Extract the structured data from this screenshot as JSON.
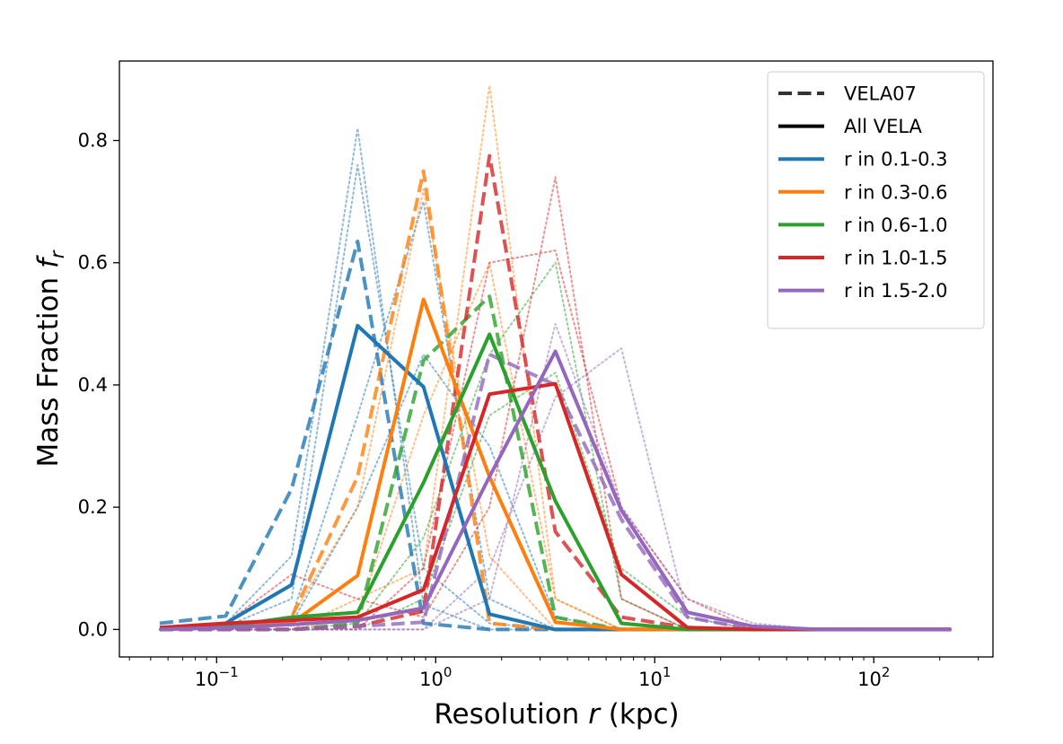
{
  "chart_data": {
    "type": "line",
    "xscale": "log",
    "xlabel": "Resolution r (kpc)",
    "xlabel_parts": {
      "pre": "Resolution ",
      "var": "r",
      "post": " (kpc)"
    },
    "ylabel": "Mass Fraction f_r",
    "ylabel_parts": {
      "pre": "Mass Fraction ",
      "var": "f",
      "sub": "r"
    },
    "xlim": [
      0.036,
      350
    ],
    "ylim": [
      -0.045,
      0.93
    ],
    "xticks": [
      {
        "value": 0.1,
        "base": "10",
        "exp": "−1"
      },
      {
        "value": 1,
        "base": "10",
        "exp": "0"
      },
      {
        "value": 10,
        "base": "10",
        "exp": "1"
      },
      {
        "value": 100,
        "base": "10",
        "exp": "2"
      }
    ],
    "yticks": [
      {
        "value": 0.0,
        "label": "0.0"
      },
      {
        "value": 0.2,
        "label": "0.2"
      },
      {
        "value": 0.4,
        "label": "0.4"
      },
      {
        "value": 0.6,
        "label": "0.6"
      },
      {
        "value": 0.8,
        "label": "0.8"
      }
    ],
    "legend": {
      "position": "top-right",
      "entries": [
        {
          "label": "VELA07",
          "color": "#333333",
          "style": "dashed"
        },
        {
          "label": "All VELA",
          "color": "#000000",
          "style": "solid"
        },
        {
          "label": "r in 0.1-0.3",
          "color": "#1f77b4",
          "style": "solid"
        },
        {
          "label": "r in 0.3-0.6",
          "color": "#ff7f0e",
          "style": "solid"
        },
        {
          "label": "r in 0.6-1.0",
          "color": "#2ca02c",
          "style": "solid"
        },
        {
          "label": "r in 1.0-1.5",
          "color": "#d62728",
          "style": "solid"
        },
        {
          "label": "r in 1.5-2.0",
          "color": "#9467bd",
          "style": "solid"
        }
      ]
    },
    "x": [
      0.055,
      0.11,
      0.22,
      0.44,
      0.88,
      1.76,
      3.52,
      7.04,
      14.1,
      28.2,
      56.3,
      113,
      225
    ],
    "series": [
      {
        "name": "r in 0.1-0.3 (All VELA)",
        "color": "#1f77b4",
        "style": "solid",
        "values": [
          0.0,
          0.01,
          0.073,
          0.497,
          0.397,
          0.025,
          0.0,
          0.0,
          0.0,
          0.0,
          0.0,
          0.0,
          0.0
        ]
      },
      {
        "name": "r in 0.3-0.6 (All VELA)",
        "color": "#ff7f0e",
        "style": "solid",
        "values": [
          0.0,
          0.005,
          0.01,
          0.088,
          0.54,
          0.25,
          0.012,
          0.0,
          0.0,
          0.0,
          0.0,
          0.0,
          0.0
        ]
      },
      {
        "name": "r in 0.6-1.0 (All VELA)",
        "color": "#2ca02c",
        "style": "solid",
        "values": [
          0.0,
          0.005,
          0.02,
          0.028,
          0.24,
          0.483,
          0.21,
          0.01,
          0.0,
          0.0,
          0.0,
          0.0,
          0.0
        ]
      },
      {
        "name": "r in 1.0-1.5 (All VELA)",
        "color": "#d62728",
        "style": "solid",
        "values": [
          0.003,
          0.01,
          0.015,
          0.02,
          0.065,
          0.385,
          0.402,
          0.09,
          0.003,
          0.0,
          0.0,
          0.0,
          0.0
        ]
      },
      {
        "name": "r in 1.5-2.0 (All VELA)",
        "color": "#9467bd",
        "style": "solid",
        "values": [
          0.0,
          0.003,
          0.008,
          0.015,
          0.035,
          0.25,
          0.455,
          0.195,
          0.028,
          0.005,
          0.0,
          0.0,
          0.0
        ]
      },
      {
        "name": "r in 0.1-0.3 (VELA07)",
        "color": "#1f77b4",
        "style": "dashed",
        "values": [
          0.01,
          0.022,
          0.23,
          0.635,
          0.01,
          0.0,
          0.0,
          0.0,
          0.0,
          0.0,
          0.0,
          0.0,
          0.0
        ]
      },
      {
        "name": "r in 0.3-0.6 (VELA07)",
        "color": "#ff7f0e",
        "style": "dashed",
        "values": [
          0.0,
          0.003,
          0.02,
          0.25,
          0.75,
          0.01,
          0.0,
          0.0,
          0.0,
          0.0,
          0.0,
          0.0,
          0.0
        ]
      },
      {
        "name": "r in 0.6-1.0 (VELA07)",
        "color": "#2ca02c",
        "style": "dashed",
        "values": [
          0.0,
          0.0,
          0.0,
          0.01,
          0.44,
          0.545,
          0.02,
          0.0,
          0.0,
          0.0,
          0.0,
          0.0,
          0.0
        ]
      },
      {
        "name": "r in 1.0-1.5 (VELA07)",
        "color": "#d62728",
        "style": "dashed",
        "values": [
          0.0,
          0.0,
          0.0,
          0.005,
          0.03,
          0.775,
          0.16,
          0.02,
          0.003,
          0.0,
          0.0,
          0.0,
          0.0
        ]
      },
      {
        "name": "r in 1.5-2.0 (VELA07)",
        "color": "#9467bd",
        "style": "dashed",
        "values": [
          0.0,
          0.0,
          0.0,
          0.005,
          0.012,
          0.45,
          0.4,
          0.18,
          0.02,
          0.0,
          0.0,
          0.0,
          0.0
        ]
      },
      {
        "name": "r in 0.1-0.3 (galaxy 1)",
        "color": "#1f77b4",
        "style": "dotted",
        "values": [
          0.0,
          0.01,
          0.12,
          0.82,
          0.04,
          0.0,
          0.0,
          0.0,
          0.0,
          0.0,
          0.0,
          0.0,
          0.0
        ]
      },
      {
        "name": "r in 0.1-0.3 (galaxy 2)",
        "color": "#1f77b4",
        "style": "dotted",
        "values": [
          0.0,
          0.005,
          0.05,
          0.76,
          0.1,
          0.01,
          0.0,
          0.0,
          0.0,
          0.0,
          0.0,
          0.0,
          0.0
        ]
      },
      {
        "name": "r in 0.1-0.3 (galaxy 3)",
        "color": "#1f77b4",
        "style": "dotted",
        "values": [
          0.0,
          0.0,
          0.02,
          0.35,
          0.7,
          0.05,
          0.0,
          0.0,
          0.0,
          0.0,
          0.0,
          0.0,
          0.0
        ]
      },
      {
        "name": "r in 0.1-0.3 (galaxy 4)",
        "color": "#1f77b4",
        "style": "dotted",
        "values": [
          0.0,
          0.0,
          0.01,
          0.2,
          0.45,
          0.3,
          0.02,
          0.0,
          0.0,
          0.0,
          0.0,
          0.0,
          0.0
        ]
      },
      {
        "name": "r in 0.3-0.6 (galaxy 1)",
        "color": "#ff7f0e",
        "style": "dotted",
        "values": [
          0.0,
          0.0,
          0.02,
          0.2,
          0.72,
          0.12,
          0.0,
          0.0,
          0.0,
          0.0,
          0.0,
          0.0,
          0.0
        ]
      },
      {
        "name": "r in 0.3-0.6 (galaxy 2)",
        "color": "#ff7f0e",
        "style": "dotted",
        "values": [
          0.0,
          0.0,
          0.0,
          0.05,
          0.1,
          0.89,
          0.05,
          0.0,
          0.0,
          0.0,
          0.0,
          0.0,
          0.0
        ]
      },
      {
        "name": "r in 0.3-0.6 (galaxy 3)",
        "color": "#ff7f0e",
        "style": "dotted",
        "values": [
          0.0,
          0.0,
          0.0,
          0.02,
          0.35,
          0.6,
          0.05,
          0.0,
          0.0,
          0.0,
          0.0,
          0.0,
          0.0
        ]
      },
      {
        "name": "r in 0.6-1.0 (galaxy 1)",
        "color": "#2ca02c",
        "style": "dotted",
        "values": [
          0.0,
          0.0,
          0.0,
          0.01,
          0.15,
          0.45,
          0.6,
          0.05,
          0.0,
          0.0,
          0.0,
          0.0,
          0.0
        ]
      },
      {
        "name": "r in 0.6-1.0 (galaxy 2)",
        "color": "#2ca02c",
        "style": "dotted",
        "values": [
          0.0,
          0.0,
          0.0,
          0.0,
          0.05,
          0.35,
          0.42,
          0.1,
          0.02,
          0.0,
          0.0,
          0.0,
          0.0
        ]
      },
      {
        "name": "r in 1.0-1.5 (galaxy 1)",
        "color": "#d62728",
        "style": "dotted",
        "values": [
          0.0,
          0.01,
          0.09,
          0.05,
          0.02,
          0.2,
          0.74,
          0.05,
          0.0,
          0.0,
          0.0,
          0.0,
          0.0
        ]
      },
      {
        "name": "r in 1.0-1.5 (galaxy 2)",
        "color": "#d62728",
        "style": "dotted",
        "values": [
          0.0,
          0.0,
          0.0,
          0.0,
          0.1,
          0.6,
          0.62,
          0.2,
          0.05,
          0.0,
          0.0,
          0.0,
          0.0
        ]
      },
      {
        "name": "r in 1.5-2.0 (galaxy 1)",
        "color": "#9467bd",
        "style": "dotted",
        "values": [
          0.0,
          0.0,
          0.0,
          0.0,
          0.0,
          0.1,
          0.38,
          0.46,
          0.02,
          0.0,
          0.0,
          0.0,
          0.0
        ]
      },
      {
        "name": "r in 1.5-2.0 (galaxy 2)",
        "color": "#9467bd",
        "style": "dotted",
        "values": [
          0.0,
          0.0,
          0.0,
          0.0,
          0.0,
          0.05,
          0.5,
          0.2,
          0.05,
          0.01,
          0.0,
          0.0,
          0.0
        ]
      }
    ]
  }
}
